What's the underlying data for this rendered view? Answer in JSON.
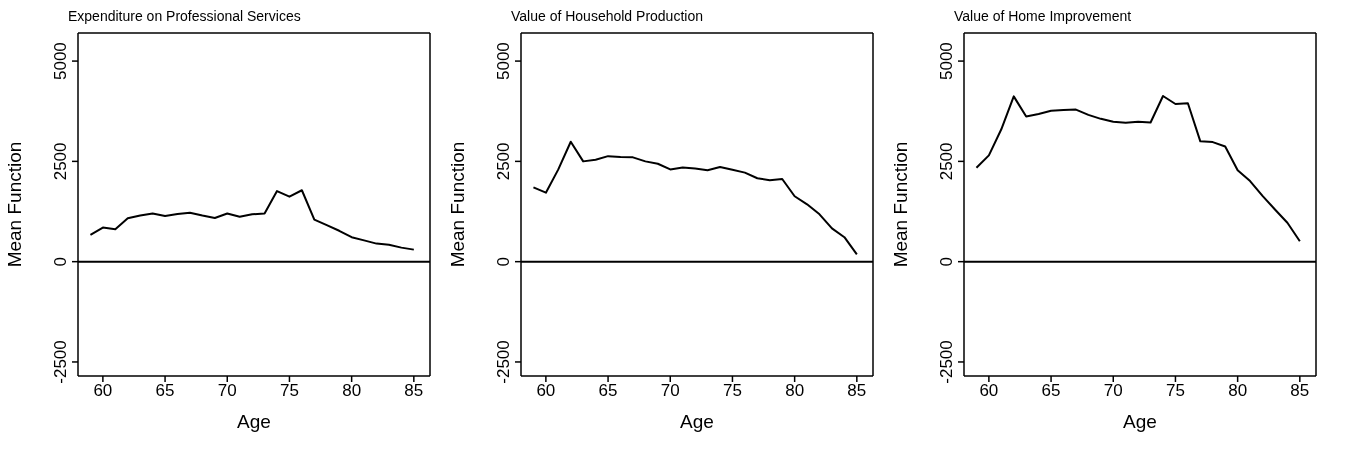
{
  "chart_data": [
    {
      "type": "line",
      "title": "Expenditure on Professional Services",
      "xlabel": "Age",
      "ylabel": "Mean Function",
      "x": [
        59,
        60,
        61,
        62,
        63,
        64,
        65,
        66,
        67,
        68,
        69,
        70,
        71,
        72,
        73,
        74,
        75,
        76,
        77,
        78,
        79,
        80,
        81,
        82,
        83,
        84,
        85
      ],
      "series": [
        {
          "color": "#000000",
          "values": [
            670,
            850,
            810,
            1080,
            1150,
            1200,
            1140,
            1190,
            1220,
            1150,
            1090,
            1200,
            1120,
            1180,
            1200,
            1760,
            1620,
            1780,
            1050,
            910,
            770,
            610,
            530,
            450,
            420,
            350,
            300
          ]
        }
      ],
      "xlim": [
        58,
        86.3
      ],
      "xticks": [
        60,
        65,
        70,
        75,
        80,
        85
      ],
      "ylim": [
        -2850,
        5700
      ],
      "yticks": [
        -2500,
        0,
        2500,
        5000
      ],
      "ref_lines": [
        {
          "axis": "y",
          "value": 0,
          "color": "#000000"
        }
      ],
      "grid": false,
      "legend": false,
      "marker": "none",
      "line_style": "solid"
    },
    {
      "type": "line",
      "title": "Value of Household Production",
      "xlabel": "Age",
      "ylabel": "Mean Function",
      "x": [
        59,
        60,
        61,
        62,
        63,
        64,
        65,
        66,
        67,
        68,
        69,
        70,
        71,
        72,
        73,
        74,
        75,
        76,
        77,
        78,
        79,
        80,
        81,
        82,
        83,
        84,
        85
      ],
      "series": [
        {
          "color": "#000000",
          "values": [
            1850,
            1720,
            2300,
            2990,
            2500,
            2540,
            2630,
            2610,
            2600,
            2500,
            2440,
            2300,
            2350,
            2320,
            2280,
            2360,
            2290,
            2220,
            2080,
            2030,
            2060,
            1630,
            1430,
            1180,
            830,
            610,
            180
          ]
        }
      ],
      "xlim": [
        58,
        86.3
      ],
      "xticks": [
        60,
        65,
        70,
        75,
        80,
        85
      ],
      "ylim": [
        -2850,
        5700
      ],
      "yticks": [
        -2500,
        0,
        2500,
        5000
      ],
      "ref_lines": [
        {
          "axis": "y",
          "value": 0,
          "color": "#000000"
        }
      ],
      "grid": false,
      "legend": false,
      "marker": "none",
      "line_style": "solid"
    },
    {
      "type": "line",
      "title": "Value of Home Improvement",
      "xlabel": "Age",
      "ylabel": "Mean Function",
      "x": [
        59,
        60,
        61,
        62,
        63,
        64,
        65,
        66,
        67,
        68,
        69,
        70,
        71,
        72,
        73,
        74,
        75,
        76,
        77,
        78,
        79,
        80,
        81,
        82,
        83,
        84,
        85
      ],
      "series": [
        {
          "color": "#000000",
          "values": [
            2340,
            2650,
            3300,
            4120,
            3620,
            3680,
            3760,
            3780,
            3790,
            3660,
            3560,
            3490,
            3460,
            3490,
            3470,
            4130,
            3930,
            3950,
            3000,
            2980,
            2870,
            2280,
            2010,
            1640,
            1300,
            970,
            510
          ]
        }
      ],
      "xlim": [
        58,
        86.3
      ],
      "xticks": [
        60,
        65,
        70,
        75,
        80,
        85
      ],
      "ylim": [
        -2850,
        5700
      ],
      "yticks": [
        -2500,
        0,
        2500,
        5000
      ],
      "ref_lines": [
        {
          "axis": "y",
          "value": 0,
          "color": "#000000"
        }
      ],
      "grid": false,
      "legend": false,
      "marker": "none",
      "line_style": "solid"
    }
  ]
}
